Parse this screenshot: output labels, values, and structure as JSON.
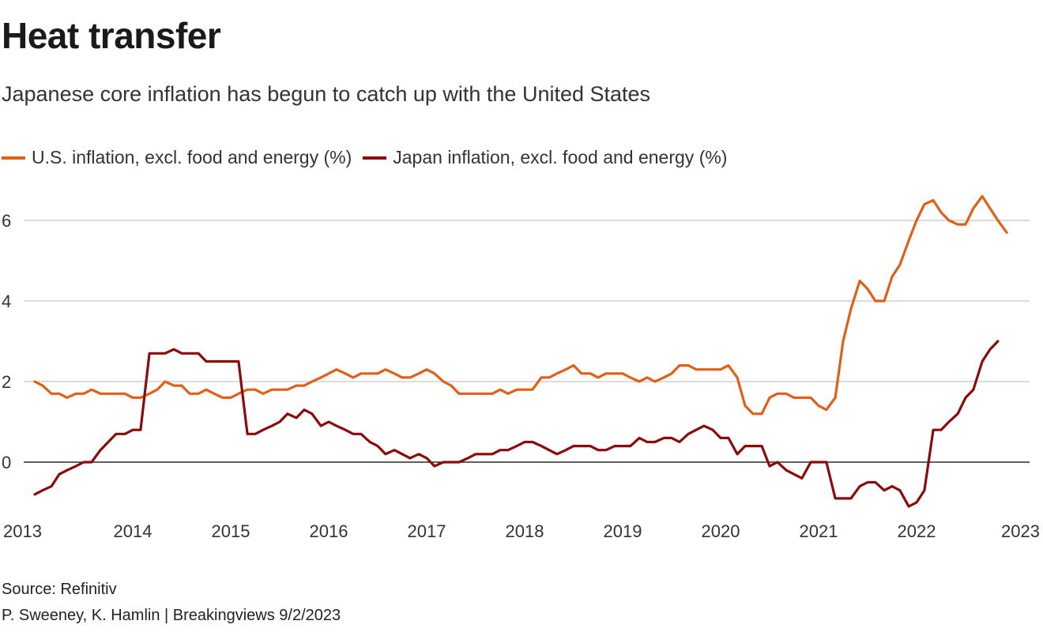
{
  "header": {
    "title": "Heat transfer",
    "subtitle": "Japanese core inflation has begun to catch up with the United States"
  },
  "footer": {
    "source": "Source: Refinitiv",
    "credit": "P. Sweeney, K. Hamlin | Breakingviews 9/2/2023"
  },
  "colors": {
    "us": "#e06018",
    "japan": "#8b0a0a",
    "grid": "#c8c8c8",
    "zero": "#000000"
  },
  "chart_data": {
    "type": "line",
    "title": "Heat transfer",
    "xlabel": "",
    "ylabel": "",
    "xlim": [
      2013,
      2023
    ],
    "ylim": [
      -1.2,
      6.8
    ],
    "y_ticks": [
      0,
      2,
      4,
      6
    ],
    "y_tick_labels": [
      "0",
      "2",
      "4",
      "6"
    ],
    "x_ticks": [
      2013,
      2014,
      2015,
      2016,
      2017,
      2018,
      2019,
      2020,
      2021,
      2022,
      2023
    ],
    "x_tick_labels": [
      "2013",
      "2014",
      "2015",
      "2016",
      "2017",
      "2018",
      "2019",
      "2020",
      "2021",
      "2022",
      "2023"
    ],
    "legend_position": "top-left",
    "series": [
      {
        "name": "U.S. inflation, excl. food and energy (%)",
        "color": "#e06018",
        "points": [
          [
            2013.0,
            2.0
          ],
          [
            2013.08,
            1.9
          ],
          [
            2013.17,
            1.7
          ],
          [
            2013.25,
            1.7
          ],
          [
            2013.33,
            1.6
          ],
          [
            2013.42,
            1.7
          ],
          [
            2013.5,
            1.7
          ],
          [
            2013.58,
            1.8
          ],
          [
            2013.67,
            1.7
          ],
          [
            2013.75,
            1.7
          ],
          [
            2013.83,
            1.7
          ],
          [
            2013.92,
            1.7
          ],
          [
            2014.0,
            1.6
          ],
          [
            2014.08,
            1.6
          ],
          [
            2014.17,
            1.7
          ],
          [
            2014.25,
            1.8
          ],
          [
            2014.33,
            2.0
          ],
          [
            2014.42,
            1.9
          ],
          [
            2014.5,
            1.9
          ],
          [
            2014.58,
            1.7
          ],
          [
            2014.67,
            1.7
          ],
          [
            2014.75,
            1.8
          ],
          [
            2014.83,
            1.7
          ],
          [
            2014.92,
            1.6
          ],
          [
            2015.0,
            1.6
          ],
          [
            2015.08,
            1.7
          ],
          [
            2015.17,
            1.8
          ],
          [
            2015.25,
            1.8
          ],
          [
            2015.33,
            1.7
          ],
          [
            2015.42,
            1.8
          ],
          [
            2015.5,
            1.8
          ],
          [
            2015.58,
            1.8
          ],
          [
            2015.67,
            1.9
          ],
          [
            2015.75,
            1.9
          ],
          [
            2015.83,
            2.0
          ],
          [
            2015.92,
            2.1
          ],
          [
            2016.0,
            2.2
          ],
          [
            2016.08,
            2.3
          ],
          [
            2016.17,
            2.2
          ],
          [
            2016.25,
            2.1
          ],
          [
            2016.33,
            2.2
          ],
          [
            2016.42,
            2.2
          ],
          [
            2016.5,
            2.2
          ],
          [
            2016.58,
            2.3
          ],
          [
            2016.67,
            2.2
          ],
          [
            2016.75,
            2.1
          ],
          [
            2016.83,
            2.1
          ],
          [
            2016.92,
            2.2
          ],
          [
            2017.0,
            2.3
          ],
          [
            2017.08,
            2.2
          ],
          [
            2017.17,
            2.0
          ],
          [
            2017.25,
            1.9
          ],
          [
            2017.33,
            1.7
          ],
          [
            2017.42,
            1.7
          ],
          [
            2017.5,
            1.7
          ],
          [
            2017.58,
            1.7
          ],
          [
            2017.67,
            1.7
          ],
          [
            2017.75,
            1.8
          ],
          [
            2017.83,
            1.7
          ],
          [
            2017.92,
            1.8
          ],
          [
            2018.0,
            1.8
          ],
          [
            2018.08,
            1.8
          ],
          [
            2018.17,
            2.1
          ],
          [
            2018.25,
            2.1
          ],
          [
            2018.33,
            2.2
          ],
          [
            2018.42,
            2.3
          ],
          [
            2018.5,
            2.4
          ],
          [
            2018.58,
            2.2
          ],
          [
            2018.67,
            2.2
          ],
          [
            2018.75,
            2.1
          ],
          [
            2018.83,
            2.2
          ],
          [
            2018.92,
            2.2
          ],
          [
            2019.0,
            2.2
          ],
          [
            2019.08,
            2.1
          ],
          [
            2019.17,
            2.0
          ],
          [
            2019.25,
            2.1
          ],
          [
            2019.33,
            2.0
          ],
          [
            2019.42,
            2.1
          ],
          [
            2019.5,
            2.2
          ],
          [
            2019.58,
            2.4
          ],
          [
            2019.67,
            2.4
          ],
          [
            2019.75,
            2.3
          ],
          [
            2019.83,
            2.3
          ],
          [
            2019.92,
            2.3
          ],
          [
            2020.0,
            2.3
          ],
          [
            2020.08,
            2.4
          ],
          [
            2020.17,
            2.1
          ],
          [
            2020.25,
            1.4
          ],
          [
            2020.33,
            1.2
          ],
          [
            2020.42,
            1.2
          ],
          [
            2020.5,
            1.6
          ],
          [
            2020.58,
            1.7
          ],
          [
            2020.67,
            1.7
          ],
          [
            2020.75,
            1.6
          ],
          [
            2020.83,
            1.6
          ],
          [
            2020.92,
            1.6
          ],
          [
            2021.0,
            1.4
          ],
          [
            2021.08,
            1.3
          ],
          [
            2021.17,
            1.6
          ],
          [
            2021.25,
            3.0
          ],
          [
            2021.33,
            3.8
          ],
          [
            2021.42,
            4.5
          ],
          [
            2021.5,
            4.3
          ],
          [
            2021.58,
            4.0
          ],
          [
            2021.67,
            4.0
          ],
          [
            2021.75,
            4.6
          ],
          [
            2021.83,
            4.9
          ],
          [
            2021.92,
            5.5
          ],
          [
            2022.0,
            6.0
          ],
          [
            2022.08,
            6.4
          ],
          [
            2022.17,
            6.5
          ],
          [
            2022.25,
            6.2
          ],
          [
            2022.33,
            6.0
          ],
          [
            2022.42,
            5.9
          ],
          [
            2022.5,
            5.9
          ],
          [
            2022.58,
            6.3
          ],
          [
            2022.67,
            6.6
          ],
          [
            2022.75,
            6.3
          ],
          [
            2022.83,
            6.0
          ],
          [
            2022.92,
            5.7
          ]
        ]
      },
      {
        "name": "Japan inflation, excl. food and energy (%)",
        "color": "#8b0a0a",
        "points": [
          [
            2013.0,
            -0.8
          ],
          [
            2013.08,
            -0.7
          ],
          [
            2013.17,
            -0.6
          ],
          [
            2013.25,
            -0.3
          ],
          [
            2013.33,
            -0.2
          ],
          [
            2013.42,
            -0.1
          ],
          [
            2013.5,
            0.0
          ],
          [
            2013.58,
            0.0
          ],
          [
            2013.67,
            0.3
          ],
          [
            2013.75,
            0.5
          ],
          [
            2013.83,
            0.7
          ],
          [
            2013.92,
            0.7
          ],
          [
            2014.0,
            0.8
          ],
          [
            2014.08,
            0.8
          ],
          [
            2014.17,
            2.7
          ],
          [
            2014.25,
            2.7
          ],
          [
            2014.33,
            2.7
          ],
          [
            2014.42,
            2.8
          ],
          [
            2014.5,
            2.7
          ],
          [
            2014.58,
            2.7
          ],
          [
            2014.67,
            2.7
          ],
          [
            2014.75,
            2.5
          ],
          [
            2014.83,
            2.5
          ],
          [
            2014.92,
            2.5
          ],
          [
            2015.0,
            2.5
          ],
          [
            2015.08,
            2.5
          ],
          [
            2015.17,
            0.7
          ],
          [
            2015.25,
            0.7
          ],
          [
            2015.33,
            0.8
          ],
          [
            2015.42,
            0.9
          ],
          [
            2015.5,
            1.0
          ],
          [
            2015.58,
            1.2
          ],
          [
            2015.67,
            1.1
          ],
          [
            2015.75,
            1.3
          ],
          [
            2015.83,
            1.2
          ],
          [
            2015.92,
            0.9
          ],
          [
            2016.0,
            1.0
          ],
          [
            2016.08,
            0.9
          ],
          [
            2016.17,
            0.8
          ],
          [
            2016.25,
            0.7
          ],
          [
            2016.33,
            0.7
          ],
          [
            2016.42,
            0.5
          ],
          [
            2016.5,
            0.4
          ],
          [
            2016.58,
            0.2
          ],
          [
            2016.67,
            0.3
          ],
          [
            2016.75,
            0.2
          ],
          [
            2016.83,
            0.1
          ],
          [
            2016.92,
            0.2
          ],
          [
            2017.0,
            0.1
          ],
          [
            2017.08,
            -0.1
          ],
          [
            2017.17,
            0.0
          ],
          [
            2017.25,
            0.0
          ],
          [
            2017.33,
            0.0
          ],
          [
            2017.42,
            0.1
          ],
          [
            2017.5,
            0.2
          ],
          [
            2017.58,
            0.2
          ],
          [
            2017.67,
            0.2
          ],
          [
            2017.75,
            0.3
          ],
          [
            2017.83,
            0.3
          ],
          [
            2017.92,
            0.4
          ],
          [
            2018.0,
            0.5
          ],
          [
            2018.08,
            0.5
          ],
          [
            2018.17,
            0.4
          ],
          [
            2018.25,
            0.3
          ],
          [
            2018.33,
            0.2
          ],
          [
            2018.42,
            0.3
          ],
          [
            2018.5,
            0.4
          ],
          [
            2018.58,
            0.4
          ],
          [
            2018.67,
            0.4
          ],
          [
            2018.75,
            0.3
          ],
          [
            2018.83,
            0.3
          ],
          [
            2018.92,
            0.4
          ],
          [
            2019.0,
            0.4
          ],
          [
            2019.08,
            0.4
          ],
          [
            2019.17,
            0.6
          ],
          [
            2019.25,
            0.5
          ],
          [
            2019.33,
            0.5
          ],
          [
            2019.42,
            0.6
          ],
          [
            2019.5,
            0.6
          ],
          [
            2019.58,
            0.5
          ],
          [
            2019.67,
            0.7
          ],
          [
            2019.75,
            0.8
          ],
          [
            2019.83,
            0.9
          ],
          [
            2019.92,
            0.8
          ],
          [
            2020.0,
            0.6
          ],
          [
            2020.08,
            0.6
          ],
          [
            2020.17,
            0.2
          ],
          [
            2020.25,
            0.4
          ],
          [
            2020.33,
            0.4
          ],
          [
            2020.42,
            0.4
          ],
          [
            2020.5,
            -0.1
          ],
          [
            2020.58,
            0.0
          ],
          [
            2020.67,
            -0.2
          ],
          [
            2020.75,
            -0.3
          ],
          [
            2020.83,
            -0.4
          ],
          [
            2020.92,
            0.0
          ],
          [
            2021.0,
            0.0
          ],
          [
            2021.08,
            0.0
          ],
          [
            2021.17,
            -0.9
          ],
          [
            2021.25,
            -0.9
          ],
          [
            2021.33,
            -0.9
          ],
          [
            2021.42,
            -0.6
          ],
          [
            2021.5,
            -0.5
          ],
          [
            2021.58,
            -0.5
          ],
          [
            2021.67,
            -0.7
          ],
          [
            2021.75,
            -0.6
          ],
          [
            2021.83,
            -0.7
          ],
          [
            2021.92,
            -1.1
          ],
          [
            2022.0,
            -1.0
          ],
          [
            2022.08,
            -0.7
          ],
          [
            2022.17,
            0.8
          ],
          [
            2022.25,
            0.8
          ],
          [
            2022.33,
            1.0
          ],
          [
            2022.42,
            1.2
          ],
          [
            2022.5,
            1.6
          ],
          [
            2022.58,
            1.8
          ],
          [
            2022.67,
            2.5
          ],
          [
            2022.75,
            2.8
          ],
          [
            2022.83,
            3.0
          ]
        ]
      }
    ]
  }
}
